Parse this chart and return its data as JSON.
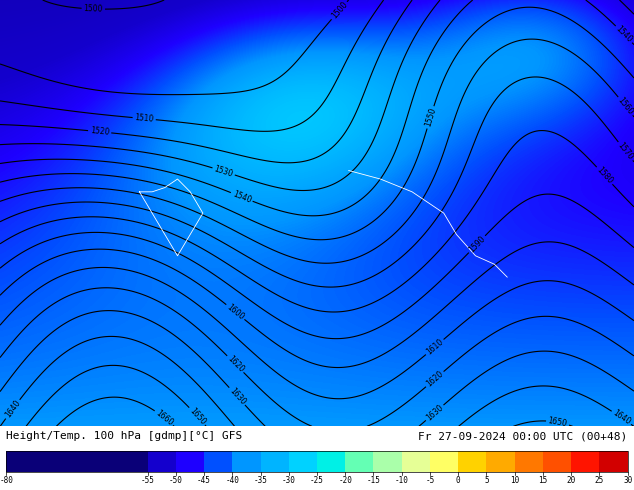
{
  "title_left": "Height/Temp. 100 hPa [gdmp][°C] GFS",
  "title_right": "Fr 27-09-2024 00:00 UTC (00+48)",
  "colorbar_ticks": [
    -80,
    -55,
    -50,
    -45,
    -40,
    -35,
    -30,
    -25,
    -20,
    -15,
    -10,
    -5,
    0,
    5,
    10,
    15,
    20,
    25,
    30
  ],
  "colorbar_colors": [
    "#0a0078",
    "#1400cd",
    "#1e00ff",
    "#0050ff",
    "#0096ff",
    "#00b4ff",
    "#00d2ff",
    "#00f0e6",
    "#64ffb4",
    "#aaffaa",
    "#e6ff96",
    "#ffff64",
    "#ffd200",
    "#ffaa00",
    "#ff7800",
    "#ff5000",
    "#ff1400",
    "#d20000",
    "#960000"
  ],
  "map_bg_color": "#1e3fff",
  "fig_width": 6.34,
  "fig_height": 4.9,
  "dpi": 100
}
